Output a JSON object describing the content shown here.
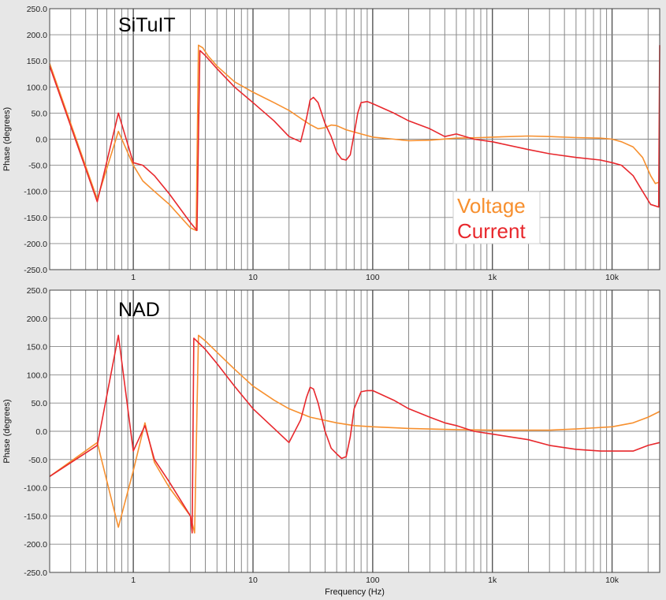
{
  "chart_data": [
    {
      "type": "line",
      "title": "SiTuIT",
      "xlabel": "",
      "ylabel": "Phase (degrees)",
      "xscale": "log",
      "xlim": [
        0.2,
        25000
      ],
      "ylim": [
        -250,
        250
      ],
      "xtick_labels": [
        {
          "value": 1,
          "label": "1"
        },
        {
          "value": 10,
          "label": "10"
        },
        {
          "value": 100,
          "label": "100"
        },
        {
          "value": 1000,
          "label": "1k"
        },
        {
          "value": 10000,
          "label": "10k"
        }
      ],
      "ytick_labels": [
        "250.0",
        "200.0",
        "150.0",
        "100.0",
        "50.0",
        "0.0",
        "-50.0",
        "-100.0",
        "-150.0",
        "-200.0",
        "-250.0"
      ],
      "grid": true,
      "legend": {
        "position": "bottom-right",
        "entries": [
          "Voltage",
          "Current"
        ]
      },
      "series": [
        {
          "name": "Voltage",
          "color": "#f7902f",
          "points": [
            [
              0.2,
              145
            ],
            [
              0.5,
              -115
            ],
            [
              0.75,
              15
            ],
            [
              1,
              -50
            ],
            [
              1.2,
              -80
            ],
            [
              1.5,
              -100
            ],
            [
              2,
              -125
            ],
            [
              3,
              -170
            ],
            [
              3.35,
              -175
            ],
            [
              3.5,
              180
            ],
            [
              3.8,
              175
            ],
            [
              4.2,
              160
            ],
            [
              5,
              140
            ],
            [
              7,
              110
            ],
            [
              10,
              90
            ],
            [
              15,
              70
            ],
            [
              20,
              55
            ],
            [
              25,
              40
            ],
            [
              30,
              28
            ],
            [
              35,
              20
            ],
            [
              40,
              22
            ],
            [
              45,
              27
            ],
            [
              50,
              26
            ],
            [
              60,
              18
            ],
            [
              80,
              10
            ],
            [
              100,
              4
            ],
            [
              150,
              0
            ],
            [
              200,
              -3
            ],
            [
              300,
              -2
            ],
            [
              500,
              2
            ],
            [
              800,
              3
            ],
            [
              1000,
              4
            ],
            [
              2000,
              6
            ],
            [
              3000,
              5
            ],
            [
              5000,
              3
            ],
            [
              8000,
              2
            ],
            [
              10000,
              0
            ],
            [
              12000,
              -5
            ],
            [
              15000,
              -15
            ],
            [
              18000,
              -35
            ],
            [
              21000,
              -70
            ],
            [
              23000,
              -85
            ],
            [
              25000,
              -82
            ]
          ]
        },
        {
          "name": "Current",
          "color": "#e8282d",
          "points": [
            [
              0.2,
              140
            ],
            [
              0.5,
              -120
            ],
            [
              0.75,
              50
            ],
            [
              1,
              -45
            ],
            [
              1.2,
              -50
            ],
            [
              1.5,
              -70
            ],
            [
              2,
              -105
            ],
            [
              3,
              -160
            ],
            [
              3.4,
              -175
            ],
            [
              3.6,
              170
            ],
            [
              4,
              160
            ],
            [
              5,
              135
            ],
            [
              7,
              100
            ],
            [
              10,
              70
            ],
            [
              15,
              35
            ],
            [
              20,
              5
            ],
            [
              25,
              -5
            ],
            [
              28,
              40
            ],
            [
              30,
              75
            ],
            [
              32,
              80
            ],
            [
              35,
              70
            ],
            [
              40,
              30
            ],
            [
              45,
              5
            ],
            [
              50,
              -25
            ],
            [
              55,
              -38
            ],
            [
              60,
              -40
            ],
            [
              65,
              -30
            ],
            [
              70,
              10
            ],
            [
              75,
              50
            ],
            [
              80,
              70
            ],
            [
              90,
              72
            ],
            [
              100,
              68
            ],
            [
              150,
              50
            ],
            [
              200,
              35
            ],
            [
              300,
              20
            ],
            [
              400,
              5
            ],
            [
              500,
              10
            ],
            [
              700,
              0
            ],
            [
              1000,
              -5
            ],
            [
              2000,
              -20
            ],
            [
              3000,
              -28
            ],
            [
              5000,
              -35
            ],
            [
              8000,
              -40
            ],
            [
              10000,
              -45
            ],
            [
              12000,
              -50
            ],
            [
              15000,
              -70
            ],
            [
              18000,
              -100
            ],
            [
              21000,
              -125
            ],
            [
              23000,
              -128
            ],
            [
              24500,
              -130
            ],
            [
              25000,
              180
            ]
          ]
        }
      ]
    },
    {
      "type": "line",
      "title": "NAD",
      "xlabel": "Frequency (Hz)",
      "ylabel": "Phase (degrees)",
      "xscale": "log",
      "xlim": [
        0.2,
        25000
      ],
      "ylim": [
        -250,
        250
      ],
      "xtick_labels": [
        {
          "value": 1,
          "label": "1"
        },
        {
          "value": 10,
          "label": "10"
        },
        {
          "value": 100,
          "label": "100"
        },
        {
          "value": 1000,
          "label": "1k"
        },
        {
          "value": 10000,
          "label": "10k"
        }
      ],
      "ytick_labels": [
        "250.0",
        "200.0",
        "150.0",
        "100.0",
        "50.0",
        "0.0",
        "-50.0",
        "-100.0",
        "-150.0",
        "-200.0",
        "-250.0"
      ],
      "grid": true,
      "series": [
        {
          "name": "Voltage",
          "color": "#f7902f",
          "points": [
            [
              0.2,
              -80
            ],
            [
              0.5,
              -20
            ],
            [
              0.75,
              -170
            ],
            [
              1,
              -70
            ],
            [
              1.25,
              15
            ],
            [
              1.5,
              -55
            ],
            [
              2,
              -100
            ],
            [
              3,
              -150
            ],
            [
              3.25,
              -180
            ],
            [
              3.5,
              170
            ],
            [
              4,
              160
            ],
            [
              5,
              140
            ],
            [
              7,
              110
            ],
            [
              10,
              80
            ],
            [
              15,
              55
            ],
            [
              20,
              40
            ],
            [
              30,
              25
            ],
            [
              50,
              15
            ],
            [
              70,
              10
            ],
            [
              100,
              8
            ],
            [
              200,
              5
            ],
            [
              500,
              3
            ],
            [
              1000,
              2
            ],
            [
              3000,
              2
            ],
            [
              5000,
              4
            ],
            [
              10000,
              8
            ],
            [
              15000,
              15
            ],
            [
              20000,
              25
            ],
            [
              25000,
              35
            ]
          ]
        },
        {
          "name": "Current",
          "color": "#e8282d",
          "points": [
            [
              0.2,
              -80
            ],
            [
              0.5,
              -25
            ],
            [
              0.75,
              170
            ],
            [
              1,
              -35
            ],
            [
              1.25,
              10
            ],
            [
              1.5,
              -50
            ],
            [
              2,
              -90
            ],
            [
              3,
              -150
            ],
            [
              3.1,
              -180
            ],
            [
              3.2,
              165
            ],
            [
              4,
              145
            ],
            [
              5,
              120
            ],
            [
              7,
              80
            ],
            [
              10,
              40
            ],
            [
              15,
              5
            ],
            [
              20,
              -20
            ],
            [
              25,
              20
            ],
            [
              28,
              60
            ],
            [
              30,
              78
            ],
            [
              32,
              75
            ],
            [
              35,
              50
            ],
            [
              40,
              0
            ],
            [
              45,
              -30
            ],
            [
              50,
              -40
            ],
            [
              55,
              -48
            ],
            [
              60,
              -45
            ],
            [
              65,
              -10
            ],
            [
              70,
              40
            ],
            [
              80,
              70
            ],
            [
              90,
              72
            ],
            [
              100,
              72
            ],
            [
              150,
              55
            ],
            [
              200,
              40
            ],
            [
              300,
              25
            ],
            [
              400,
              15
            ],
            [
              500,
              10
            ],
            [
              700,
              0
            ],
            [
              1000,
              -5
            ],
            [
              2000,
              -15
            ],
            [
              3000,
              -25
            ],
            [
              5000,
              -32
            ],
            [
              8000,
              -35
            ],
            [
              10000,
              -35
            ],
            [
              15000,
              -35
            ],
            [
              20000,
              -25
            ],
            [
              25000,
              -20
            ]
          ]
        }
      ]
    }
  ]
}
